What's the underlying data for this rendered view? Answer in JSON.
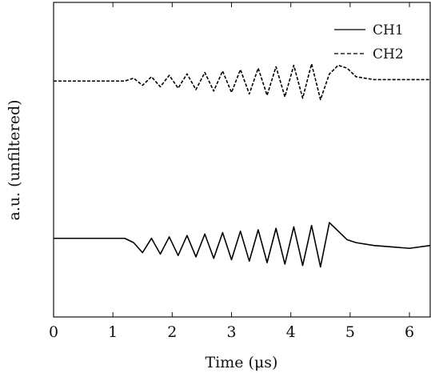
{
  "chart_data": {
    "type": "line",
    "title": "",
    "xlabel": "Time (μs)",
    "ylabel": "a.u. (unfiltered)",
    "xlim": [
      0,
      6.35
    ],
    "xticks": [
      0,
      1,
      2,
      3,
      4,
      5,
      6
    ],
    "xtick_labels": [
      "0",
      "1",
      "2",
      "3",
      "4",
      "5",
      "6"
    ],
    "ylim": [
      -1.1,
      1.1
    ],
    "yticks_shown": false,
    "grid": false,
    "legend": {
      "position": "top-right"
    },
    "series": [
      {
        "name": "CH1",
        "style": "solid",
        "color": "#000000",
        "x": [
          0,
          1.2,
          1.35,
          1.5,
          1.65,
          1.8,
          1.95,
          2.1,
          2.25,
          2.4,
          2.55,
          2.7,
          2.85,
          3.0,
          3.15,
          3.3,
          3.45,
          3.6,
          3.75,
          3.9,
          4.05,
          4.2,
          4.35,
          4.5,
          4.65,
          4.8,
          4.95,
          5.1,
          5.4,
          5.7,
          6.0,
          6.35
        ],
        "y": [
          -0.55,
          -0.55,
          -0.58,
          -0.65,
          -0.55,
          -0.66,
          -0.54,
          -0.67,
          -0.53,
          -0.68,
          -0.52,
          -0.69,
          -0.51,
          -0.7,
          -0.5,
          -0.71,
          -0.49,
          -0.72,
          -0.48,
          -0.73,
          -0.47,
          -0.74,
          -0.46,
          -0.75,
          -0.44,
          -0.5,
          -0.56,
          -0.58,
          -0.6,
          -0.61,
          -0.62,
          -0.6
        ]
      },
      {
        "name": "CH2",
        "style": "dashed",
        "color": "#000000",
        "x": [
          0,
          1.2,
          1.35,
          1.5,
          1.65,
          1.8,
          1.95,
          2.1,
          2.25,
          2.4,
          2.55,
          2.7,
          2.85,
          3.0,
          3.15,
          3.3,
          3.45,
          3.6,
          3.75,
          3.9,
          4.05,
          4.2,
          4.35,
          4.5,
          4.65,
          4.8,
          4.95,
          5.1,
          5.4,
          5.7,
          6.0,
          6.35
        ],
        "y": [
          0.55,
          0.55,
          0.57,
          0.52,
          0.58,
          0.51,
          0.59,
          0.5,
          0.6,
          0.49,
          0.61,
          0.48,
          0.62,
          0.47,
          0.63,
          0.46,
          0.64,
          0.45,
          0.65,
          0.44,
          0.66,
          0.43,
          0.67,
          0.42,
          0.6,
          0.66,
          0.64,
          0.58,
          0.56,
          0.56,
          0.56,
          0.56
        ]
      }
    ]
  }
}
